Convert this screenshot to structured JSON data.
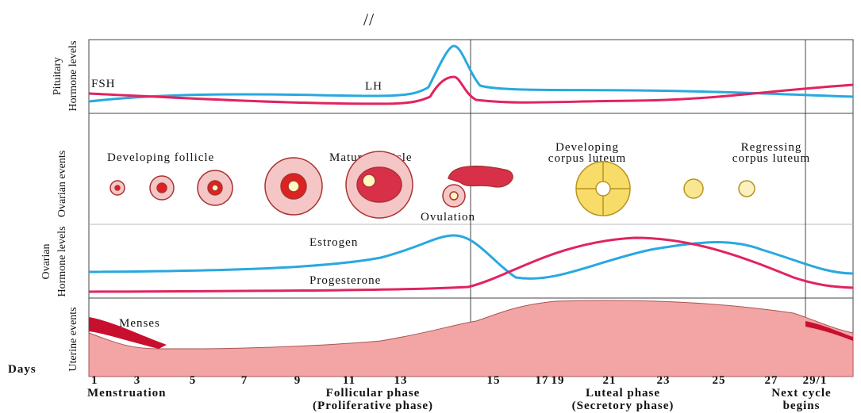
{
  "header": {
    "mark": "//"
  },
  "side_labels": {
    "pituitary": [
      "Pituitary",
      "Hormone levels"
    ],
    "ovarian_events": "Ovarian events",
    "ovarian_hormones": [
      "Ovarian",
      "Hormone levels"
    ],
    "uterine_events": "Uterine events"
  },
  "pituitary": {
    "fsh": "FSH",
    "lh": "LH"
  },
  "ovarian_events": {
    "developing_follicle": "Developing follicle",
    "mature_follicle": "Mature follicle",
    "ovulation": "Ovulation",
    "developing_corpus_luteum": [
      "Developing",
      "corpus luteum"
    ],
    "regressing_corpus_luteum": [
      "Regressing",
      "corpus luteum"
    ]
  },
  "ovarian_hormones": {
    "estrogen": "Estrogen",
    "progesterone": "Progesterone"
  },
  "uterine": {
    "menses": "Menses"
  },
  "axis": {
    "title": "Days",
    "days": [
      "1",
      "3",
      "5",
      "7",
      "9",
      "11",
      "13",
      "15",
      "17",
      "19",
      "21",
      "23",
      "25",
      "27",
      "29/1"
    ]
  },
  "phases": {
    "menstruation": "Menstruation",
    "follicular": [
      "Follicular phase",
      "(Proliferative phase)"
    ],
    "luteal": [
      "Luteal phase",
      "(Secretory phase)"
    ],
    "next": [
      "Next cycle",
      "begins"
    ]
  }
}
